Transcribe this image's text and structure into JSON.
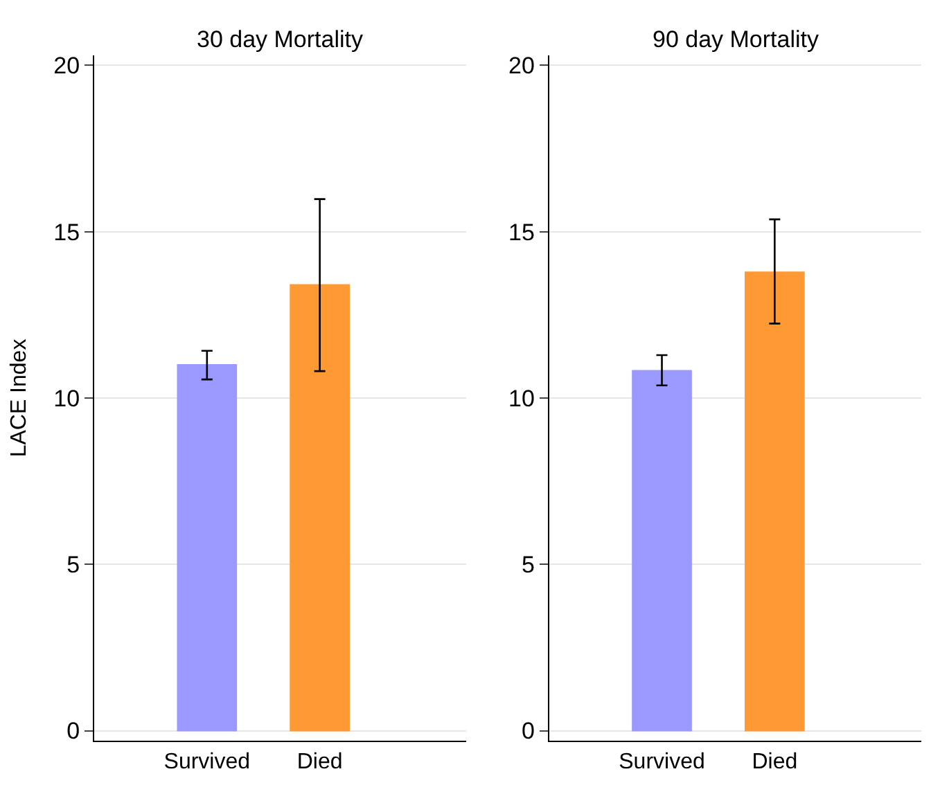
{
  "chart_data": [
    {
      "type": "bar",
      "title": "30 day Mortality",
      "ylabel": "LACE Index",
      "categories": [
        "Survived",
        "Died"
      ],
      "values": [
        11.0,
        13.4
      ],
      "colors": [
        "#9999ff",
        "#ff9933"
      ],
      "errors": [
        [
          10.56,
          11.42
        ],
        [
          10.81,
          15.98
        ]
      ],
      "ylim": [
        -0.3,
        20.3
      ],
      "yticks": [
        0,
        5,
        10,
        15,
        20
      ],
      "grid": "y"
    },
    {
      "type": "bar",
      "title": "90 day Mortality",
      "categories": [
        "Survived",
        "Died"
      ],
      "values": [
        10.82,
        13.78
      ],
      "colors": [
        "#9999ff",
        "#ff9933"
      ],
      "errors": [
        [
          10.38,
          11.29
        ],
        [
          12.24,
          15.37
        ]
      ],
      "ylim": [
        -0.3,
        20.3
      ],
      "yticks": [
        0,
        5,
        10,
        15,
        20
      ],
      "grid": "y"
    }
  ]
}
